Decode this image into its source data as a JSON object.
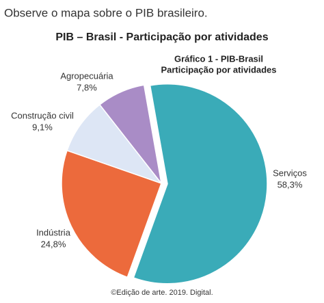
{
  "prompt": "Observe o mapa sobre o PIB brasileiro.",
  "chart_data": {
    "type": "pie",
    "title": "PIB – Brasil - Participação por atividades",
    "subtitle": [
      "Gráfico 1 - PIB-Brasil",
      "Participação por atividades"
    ],
    "categories": [
      "Serviços",
      "Indústria",
      "Construção civil",
      "Agropecuária"
    ],
    "values": [
      58.3,
      24.8,
      9.1,
      7.8
    ],
    "value_labels": [
      "58,3%",
      "24,8%",
      "9,1%",
      "7,8%"
    ],
    "colors": [
      "#3aabb8",
      "#ec6a3c",
      "#dde6f5",
      "#a98cc6"
    ]
  },
  "source": "©Edição de arte. 2019. Digital."
}
